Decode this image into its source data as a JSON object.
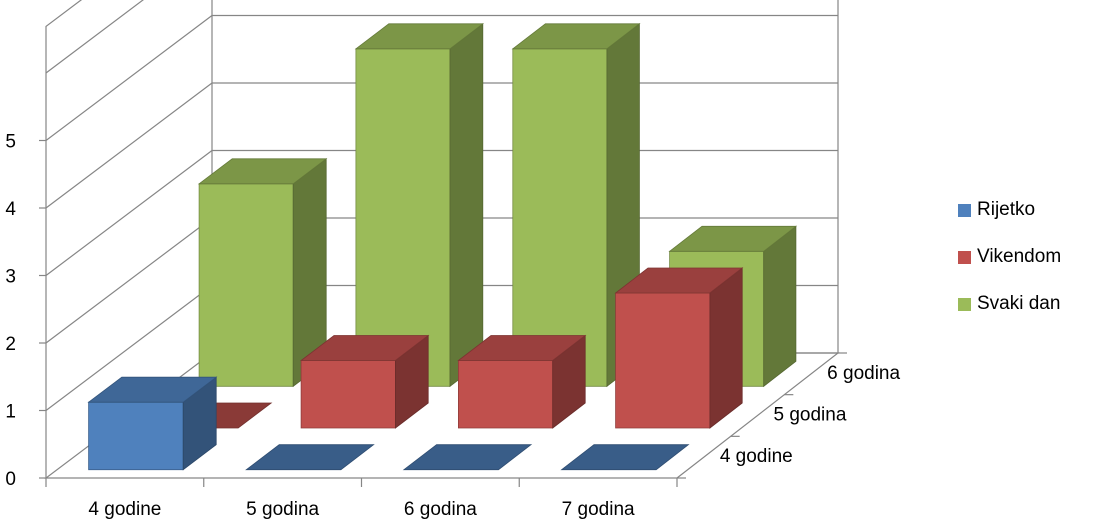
{
  "chart_data": {
    "type": "bar",
    "variant": "3d-column",
    "categories": [
      "4 godine",
      "5 godina",
      "6 godina",
      "7 godina"
    ],
    "depth_labels": [
      "4 godine",
      "5 godina",
      "6 godina"
    ],
    "series": [
      {
        "name": "Rijetko",
        "values": [
          1,
          0,
          0,
          0
        ],
        "color": "#4F81BD"
      },
      {
        "name": "Vikendom",
        "values": [
          0,
          1,
          1,
          2
        ],
        "color": "#C0504D"
      },
      {
        "name": "Svaki dan",
        "values": [
          3,
          5,
          5,
          2
        ],
        "color": "#9BBB59"
      }
    ],
    "y_ticks": [
      "0",
      "1",
      "2",
      "3",
      "4",
      "5"
    ],
    "ylim": [
      0,
      5
    ],
    "grid": true,
    "legend_position": "right"
  }
}
